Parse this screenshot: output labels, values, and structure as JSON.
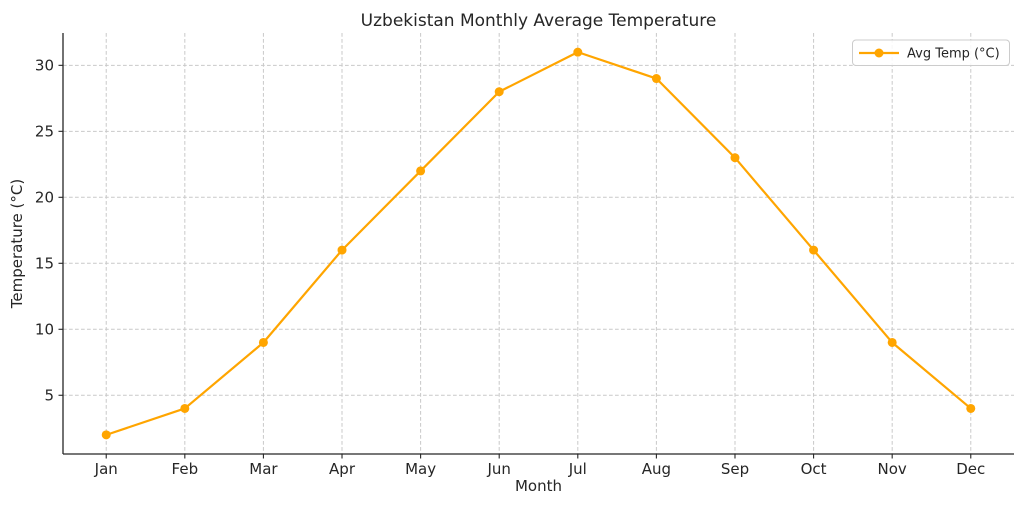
{
  "chart_data": {
    "type": "line",
    "title": "Uzbekistan Monthly Average Temperature",
    "xlabel": "Month",
    "ylabel": "Temperature (°C)",
    "categories": [
      "Jan",
      "Feb",
      "Mar",
      "Apr",
      "May",
      "Jun",
      "Jul",
      "Aug",
      "Sep",
      "Oct",
      "Nov",
      "Dec"
    ],
    "series": [
      {
        "name": "Avg Temp (°C)",
        "values": [
          2,
          4,
          9,
          16,
          22,
          28,
          31,
          29,
          23,
          16,
          9,
          4
        ],
        "color": "#ffa500",
        "marker": "circle"
      }
    ],
    "yticks": [
      5,
      10,
      15,
      20,
      25,
      30
    ],
    "ylim": [
      0.55,
      32.45
    ],
    "grid": true,
    "grid_style": "dashed",
    "grid_color": "#c9c9c9",
    "text_color": "#262626",
    "background_color": "#ffffff",
    "legend_position": "upper right"
  }
}
